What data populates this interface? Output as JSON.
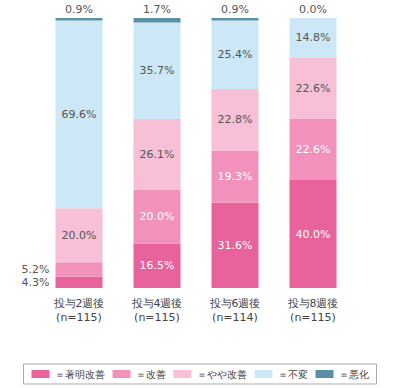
{
  "chart_data": {
    "type": "bar",
    "stacked": true,
    "data_labels": true,
    "tick_labels": "x",
    "grid": false,
    "legend": "bottom",
    "categories": [
      "投与2週後\n(n=115)",
      "投与4週後\n(n=115)",
      "投与6週後\n(n=114)",
      "投与8週後\n(n=115)"
    ],
    "ylim": [
      0,
      100
    ],
    "series": [
      {
        "name": "＝著明改善",
        "color": "#e8629c",
        "values": [
          4.3,
          16.5,
          31.6,
          40.0
        ],
        "value_labels": [
          "4.3%",
          "16.5%",
          "31.6%",
          "40.0%"
        ]
      },
      {
        "name": "＝改善",
        "color": "#f291bb",
        "values": [
          5.2,
          20.0,
          19.3,
          22.6
        ],
        "value_labels": [
          "5.2%",
          "20.0%",
          "19.3%",
          "22.6%"
        ]
      },
      {
        "name": "＝やや改善",
        "color": "#f7c0d7",
        "values": [
          20.0,
          26.1,
          22.8,
          22.6
        ],
        "value_labels": [
          "20.0%",
          "26.1%",
          "22.8%",
          "22.6%"
        ]
      },
      {
        "name": "＝不変",
        "color": "#cce8f6",
        "values": [
          69.6,
          35.7,
          25.4,
          14.8
        ],
        "value_labels": [
          "69.6%",
          "35.7%",
          "25.4%",
          "14.8%"
        ]
      },
      {
        "name": "＝悪化",
        "color": "#5b8fa8",
        "values": [
          0.9,
          1.7,
          0.9,
          0.0
        ],
        "value_labels": [
          "0.9%",
          "1.7%",
          "0.9%",
          "0.0%"
        ]
      }
    ]
  }
}
